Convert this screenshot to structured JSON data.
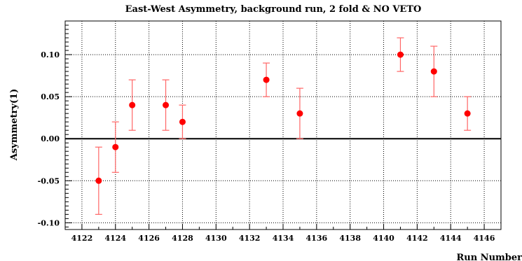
{
  "chart_data": {
    "type": "scatter",
    "title": "East-West Asymmetry, background run, 2 fold & NO VETO",
    "xlabel": "Run Number",
    "ylabel": "Asymmetry(1)",
    "xlim": [
      4121,
      4147
    ],
    "ylim": [
      -0.108,
      0.14
    ],
    "x_ticks": [
      4122,
      4124,
      4126,
      4128,
      4130,
      4132,
      4134,
      4136,
      4138,
      4140,
      4142,
      4144,
      4146
    ],
    "x_tick_labels": [
      "4122",
      "4124",
      "4126",
      "4128",
      "4130",
      "4132",
      "4134",
      "4136",
      "4138",
      "4140",
      "4142",
      "4144",
      "4146"
    ],
    "y_ticks": [
      -0.1,
      -0.05,
      0.0,
      0.05,
      0.1
    ],
    "y_tick_labels": [
      "-0.10",
      "-0.05",
      "0.00",
      "0.05",
      "0.10"
    ],
    "grid": true,
    "zero_line": true,
    "marker_color": "#ff0000",
    "errorbar_color": "#ff6666",
    "points": [
      {
        "x": 4123,
        "y": -0.05,
        "err": 0.04
      },
      {
        "x": 4124,
        "y": -0.01,
        "err": 0.03
      },
      {
        "x": 4125,
        "y": 0.04,
        "err": 0.03
      },
      {
        "x": 4127,
        "y": 0.04,
        "err": 0.03
      },
      {
        "x": 4128,
        "y": 0.02,
        "err": 0.02
      },
      {
        "x": 4133,
        "y": 0.07,
        "err": 0.02
      },
      {
        "x": 4135,
        "y": 0.03,
        "err": 0.03
      },
      {
        "x": 4141,
        "y": 0.1,
        "err": 0.02
      },
      {
        "x": 4143,
        "y": 0.08,
        "err": 0.03
      },
      {
        "x": 4145,
        "y": 0.03,
        "err": 0.02
      }
    ]
  }
}
